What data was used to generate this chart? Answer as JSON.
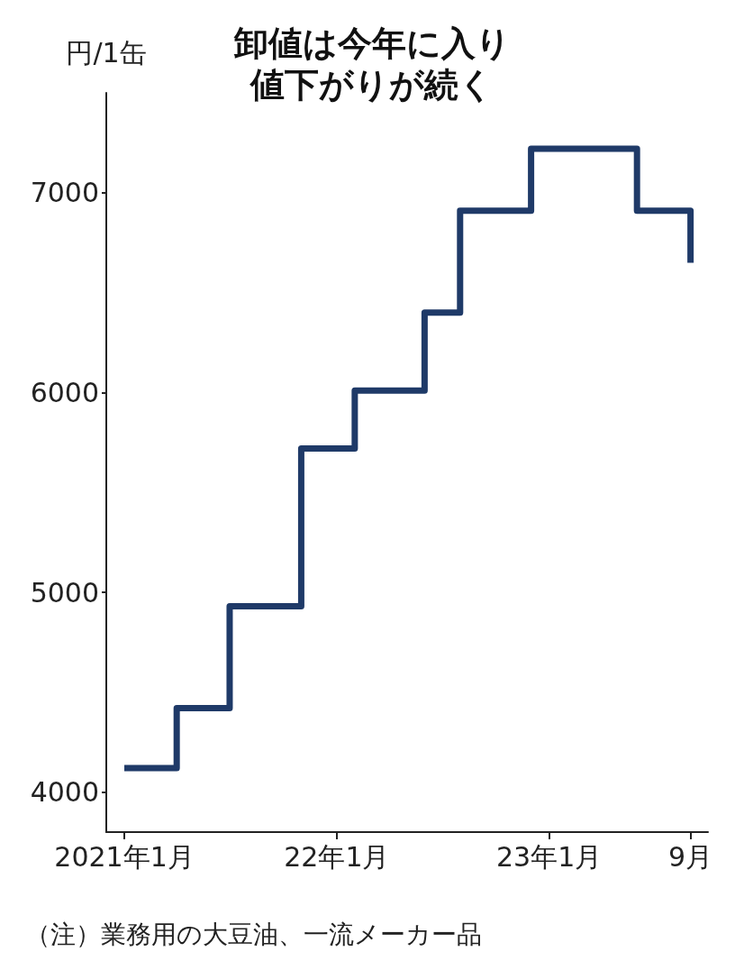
{
  "chart_data": {
    "type": "step",
    "title": "卸値は今年に入り値下がりが続く",
    "ylabel": "円/1缶",
    "annotations": [
      "（注）業務用の大豆油、一流メーカー品"
    ],
    "x": [
      "2021-01",
      "2021-04",
      "2021-07",
      "2021-11",
      "2022-02",
      "2022-06",
      "2022-08",
      "2022-12",
      "2023-06",
      "2023-09"
    ],
    "series": [
      {
        "color": "#1f3a68",
        "values": [
          4120,
          4420,
          4930,
          5720,
          6010,
          6400,
          6910,
          7220,
          6910,
          6650
        ]
      }
    ],
    "xlim": [
      "2020-12",
      "2023-10"
    ],
    "xticks": [
      {
        "value": "2021-01",
        "label": "2021年1月"
      },
      {
        "value": "2022-01",
        "label": "22年1月"
      },
      {
        "value": "2023-01",
        "label": "23年1月"
      },
      {
        "value": "2023-09",
        "label": "9月"
      }
    ],
    "ylim": [
      3800,
      7500
    ],
    "yticks": [
      4000,
      5000,
      6000,
      7000
    ],
    "grid": false,
    "marker": "none",
    "line_style": "solid"
  }
}
